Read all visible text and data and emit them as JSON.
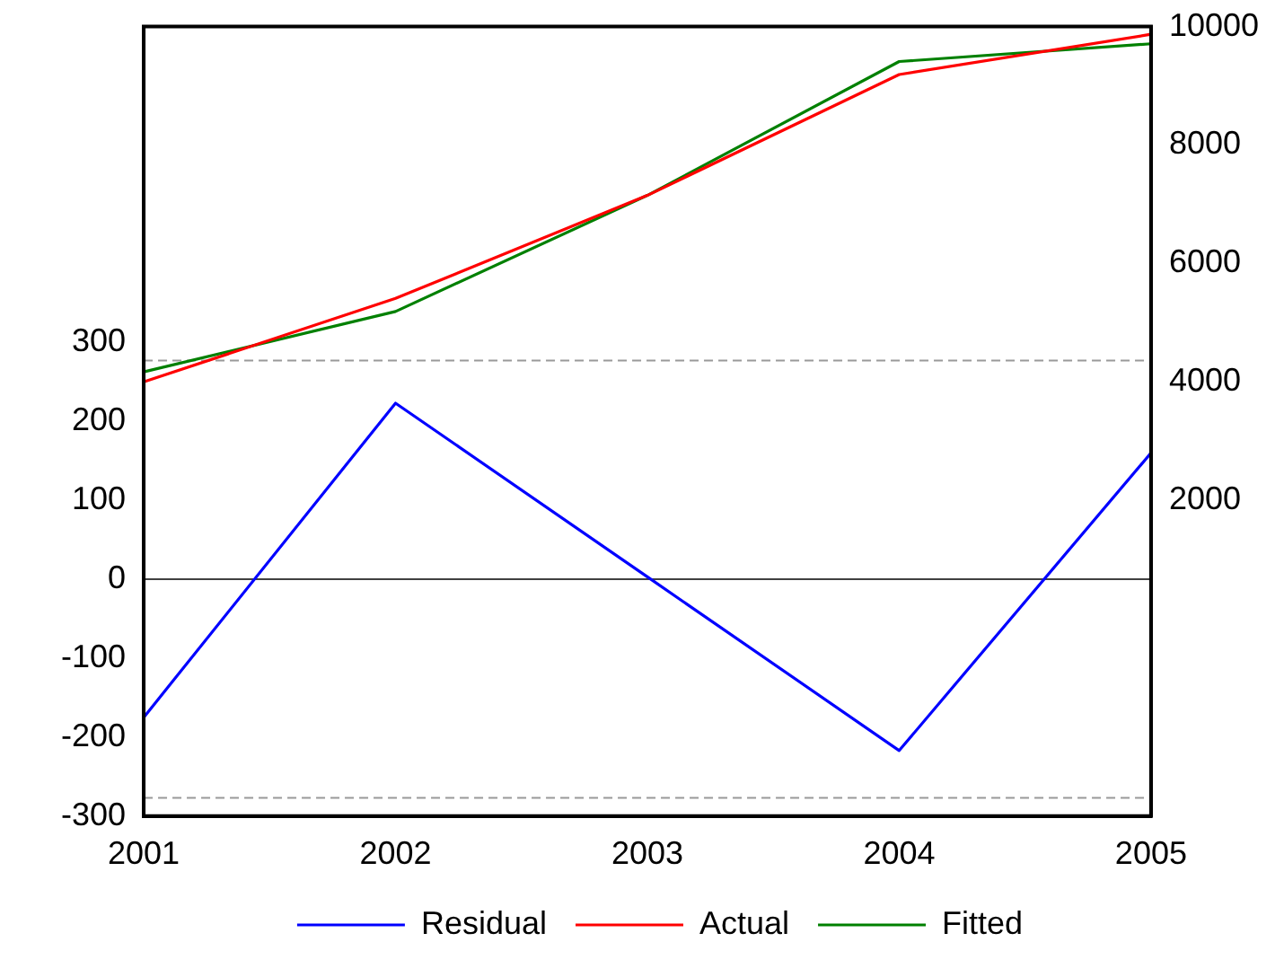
{
  "chart_data": {
    "type": "line",
    "categories": [
      "2001",
      "2002",
      "2003",
      "2004",
      "2005"
    ],
    "series": [
      {
        "name": "Residual",
        "color": "#0000ff",
        "values": [
          -175,
          223,
          3,
          -217,
          160
        ]
      },
      {
        "name": "Actual",
        "color": "#ff0000",
        "values": [
          4000,
          5410,
          7150,
          9190,
          9870
        ],
        "axis": "y2"
      },
      {
        "name": "Fitted",
        "color": "#008000",
        "values": [
          4170,
          5190,
          7150,
          9410,
          9710
        ],
        "axis": "y2"
      }
    ],
    "ylim": [
      -300,
      700
    ],
    "yticks": [
      -300,
      -200,
      -100,
      0,
      100,
      200,
      300
    ],
    "y2lim": [
      -3330,
      10000
    ],
    "y2ticks": [
      2000,
      4000,
      6000,
      8000,
      10000
    ],
    "ref_lines": [
      {
        "axis": "y",
        "value": 277,
        "color": "#999999",
        "line_style": "dashed"
      },
      {
        "axis": "y",
        "value": 0,
        "color": "#404040",
        "line_style": "solid"
      },
      {
        "axis": "y",
        "value": -277,
        "color": "#999999",
        "line_style": "dashed"
      }
    ],
    "grid": false,
    "legend": "bottom",
    "marker": "none",
    "line_style": "solid"
  }
}
